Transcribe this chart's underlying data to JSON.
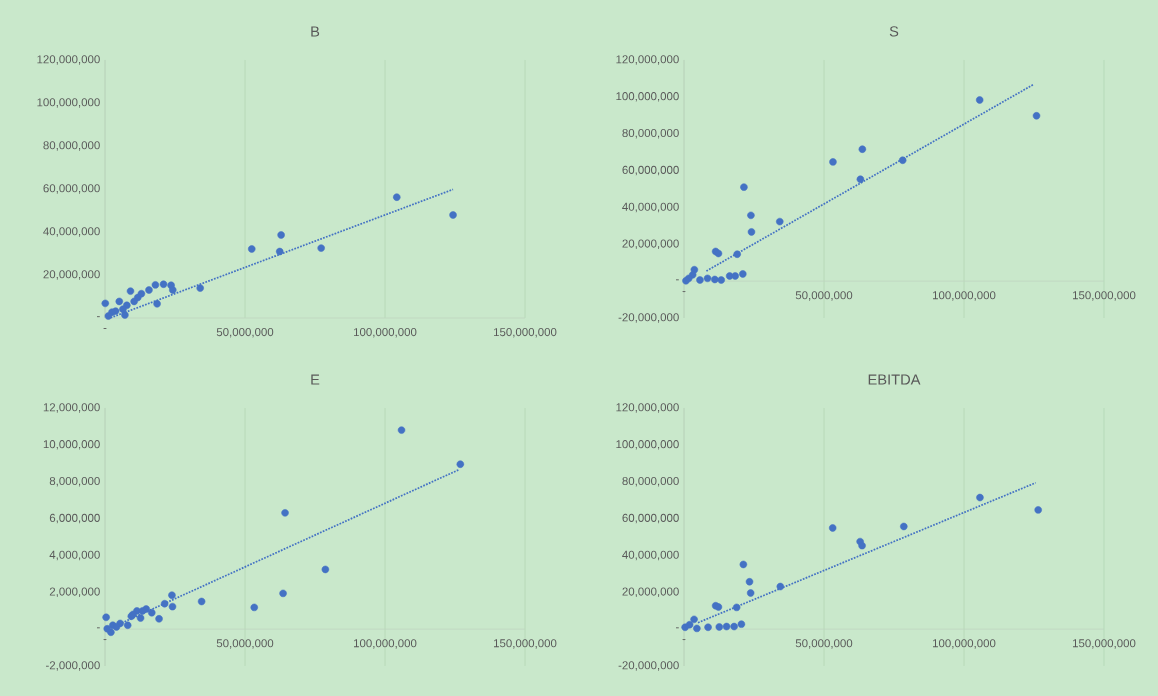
{
  "chart_data": [
    {
      "type": "scatter",
      "title": "B",
      "grid": "x",
      "xlim": [
        0,
        150000000
      ],
      "ylim": [
        0,
        120000000
      ],
      "xticks": [
        {
          "value": 0,
          "label": "-"
        },
        {
          "value": 50000000,
          "label": "50,000,000"
        },
        {
          "value": 100000000,
          "label": "100,000,000"
        },
        {
          "value": 150000000,
          "label": "150,000,000"
        }
      ],
      "yticks": [
        {
          "value": 0,
          "label": "-"
        },
        {
          "value": 20000000,
          "label": "20,000,000"
        },
        {
          "value": 40000000,
          "label": "40,000,000"
        },
        {
          "value": 60000000,
          "label": "60,000,000"
        },
        {
          "value": 80000000,
          "label": "80,000,000"
        },
        {
          "value": 100000000,
          "label": "100,000,000"
        },
        {
          "value": 120000000,
          "label": "120,000,000"
        }
      ],
      "series": [
        {
          "color": "#4472c4",
          "marker": "circle",
          "x": [
            124300000,
            104200000,
            77200000,
            62900000,
            62400000,
            52400000,
            34000000,
            23600000,
            20900000,
            18000000,
            18600000,
            9100000,
            100000,
            11700000,
            7800000,
            5100000,
            3800000,
            7100000,
            15700000,
            13000000,
            10400000,
            6400000,
            2500000,
            1200000,
            24200000
          ],
          "values": [
            47900000,
            56200000,
            32500000,
            38600000,
            30900000,
            32100000,
            13900000,
            15200000,
            15700000,
            15400000,
            6600000,
            12500000,
            6800000,
            9500000,
            5900000,
            7700000,
            3200000,
            1400000,
            13000000,
            11300000,
            7700000,
            4100000,
            2700000,
            900000,
            13000000
          ]
        },
        {
          "type": "line",
          "color": "#4472c4",
          "marker": "none",
          "line_style": "dotted",
          "x": [
            2000000,
            124300000
          ],
          "values": [
            100000,
            59800000
          ]
        }
      ]
    },
    {
      "type": "scatter",
      "title": "S",
      "grid": "x",
      "xlim": [
        0,
        150000000
      ],
      "ylim": [
        -20000000,
        120000000
      ],
      "xticks": [
        {
          "value": 0,
          "label": "-"
        },
        {
          "value": 50000000,
          "label": "50,000,000"
        },
        {
          "value": 100000000,
          "label": "100,000,000"
        },
        {
          "value": 150000000,
          "label": "150,000,000"
        }
      ],
      "yticks": [
        {
          "value": -20000000,
          "label": "-20,000,000"
        },
        {
          "value": 0,
          "label": "-"
        },
        {
          "value": 20000000,
          "label": "20,000,000"
        },
        {
          "value": 40000000,
          "label": "40,000,000"
        },
        {
          "value": 60000000,
          "label": "60,000,000"
        },
        {
          "value": 80000000,
          "label": "80,000,000"
        },
        {
          "value": 100000000,
          "label": "100,000,000"
        },
        {
          "value": 120000000,
          "label": "120,000,000"
        }
      ],
      "series": [
        {
          "color": "#4472c4",
          "marker": "circle",
          "x": [
            125900000,
            105600000,
            78100000,
            63700000,
            63000000,
            53200000,
            34200000,
            23900000,
            24100000,
            21400000,
            19000000,
            11300000,
            12300000,
            21000000,
            16300000,
            13300000,
            8400000,
            3700000,
            3100000,
            1700000,
            700000,
            5700000,
            11000000,
            18300000
          ],
          "values": [
            89700000,
            98300000,
            65600000,
            71600000,
            55300000,
            64700000,
            32300000,
            35700000,
            26700000,
            51000000,
            14600000,
            16100000,
            15000000,
            3900000,
            2800000,
            600000,
            1500000,
            6200000,
            3400000,
            1500000,
            200000,
            600000,
            900000,
            2800000
          ]
        },
        {
          "type": "line",
          "color": "#4472c4",
          "marker": "none",
          "line_style": "dotted",
          "x": [
            8000000,
            124800000
          ],
          "values": [
            5500000,
            106700000
          ]
        }
      ]
    },
    {
      "type": "scatter",
      "title": "E",
      "grid": "x",
      "xlim": [
        0,
        150000000
      ],
      "ylim": [
        -2000000,
        12000000
      ],
      "xticks": [
        {
          "value": 0,
          "label": "-"
        },
        {
          "value": 50000000,
          "label": "50,000,000"
        },
        {
          "value": 100000000,
          "label": "100,000,000"
        },
        {
          "value": 150000000,
          "label": "150,000,000"
        }
      ],
      "yticks": [
        {
          "value": -2000000,
          "label": "-2,000,000"
        },
        {
          "value": 0,
          "label": "-"
        },
        {
          "value": 2000000,
          "label": "2,000,000"
        },
        {
          "value": 4000000,
          "label": "4,000,000"
        },
        {
          "value": 6000000,
          "label": "6,000,000"
        },
        {
          "value": 8000000,
          "label": "8,000,000"
        },
        {
          "value": 10000000,
          "label": "10,000,000"
        },
        {
          "value": 12000000,
          "label": "12,000,000"
        }
      ],
      "series": [
        {
          "color": "#4472c4",
          "marker": "circle",
          "x": [
            126900000,
            105900000,
            64300000,
            78700000,
            63600000,
            53300000,
            34500000,
            23900000,
            24100000,
            21300000,
            19300000,
            16700000,
            14700000,
            11400000,
            12700000,
            9400000,
            8100000,
            5400000,
            2800000,
            400000,
            2100000,
            800000,
            4100000,
            10000000,
            13400000
          ],
          "values": [
            8950000,
            10800000,
            6310000,
            3240000,
            1940000,
            1180000,
            1500000,
            1840000,
            1220000,
            1380000,
            560000,
            890000,
            1090000,
            990000,
            600000,
            700000,
            210000,
            310000,
            210000,
            640000,
            -170000,
            20000,
            120000,
            800000,
            990000
          ]
        },
        {
          "type": "line",
          "color": "#4472c4",
          "marker": "none",
          "line_style": "dotted",
          "x": [
            2000000,
            126500000
          ],
          "values": [
            60000,
            8660000
          ]
        }
      ]
    },
    {
      "type": "scatter",
      "title": "EBITDA",
      "grid": "x",
      "xlim": [
        0,
        150000000
      ],
      "ylim": [
        -20000000,
        120000000
      ],
      "xticks": [
        {
          "value": 0,
          "label": "-"
        },
        {
          "value": 50000000,
          "label": "50,000,000"
        },
        {
          "value": 100000000,
          "label": "100,000,000"
        },
        {
          "value": 150000000,
          "label": "150,000,000"
        }
      ],
      "yticks": [
        {
          "value": -20000000,
          "label": "-20,000,000"
        },
        {
          "value": 0,
          "label": "-"
        },
        {
          "value": 20000000,
          "label": "20,000,000"
        },
        {
          "value": 40000000,
          "label": "40,000,000"
        },
        {
          "value": 60000000,
          "label": "60,000,000"
        },
        {
          "value": 80000000,
          "label": "80,000,000"
        },
        {
          "value": 100000000,
          "label": "100,000,000"
        },
        {
          "value": 120000000,
          "label": "120,000,000"
        }
      ],
      "series": [
        {
          "color": "#4472c4",
          "marker": "circle",
          "x": [
            126500000,
            105700000,
            78500000,
            53100000,
            62900000,
            63600000,
            34400000,
            21200000,
            23400000,
            23800000,
            18800000,
            11300000,
            12300000,
            20500000,
            15200000,
            8600000,
            3600000,
            2000000,
            400000,
            4600000,
            12600000,
            17900000
          ],
          "values": [
            64700000,
            71400000,
            55700000,
            54900000,
            47500000,
            45300000,
            23100000,
            35100000,
            25700000,
            19600000,
            11800000,
            12700000,
            12000000,
            2700000,
            1400000,
            1000000,
            5300000,
            2400000,
            1000000,
            400000,
            1200000,
            1400000
          ]
        },
        {
          "type": "line",
          "color": "#4472c4",
          "marker": "none",
          "line_style": "dotted",
          "x": [
            5000000,
            125600000
          ],
          "values": [
            3500000,
            79400000
          ]
        }
      ]
    }
  ]
}
